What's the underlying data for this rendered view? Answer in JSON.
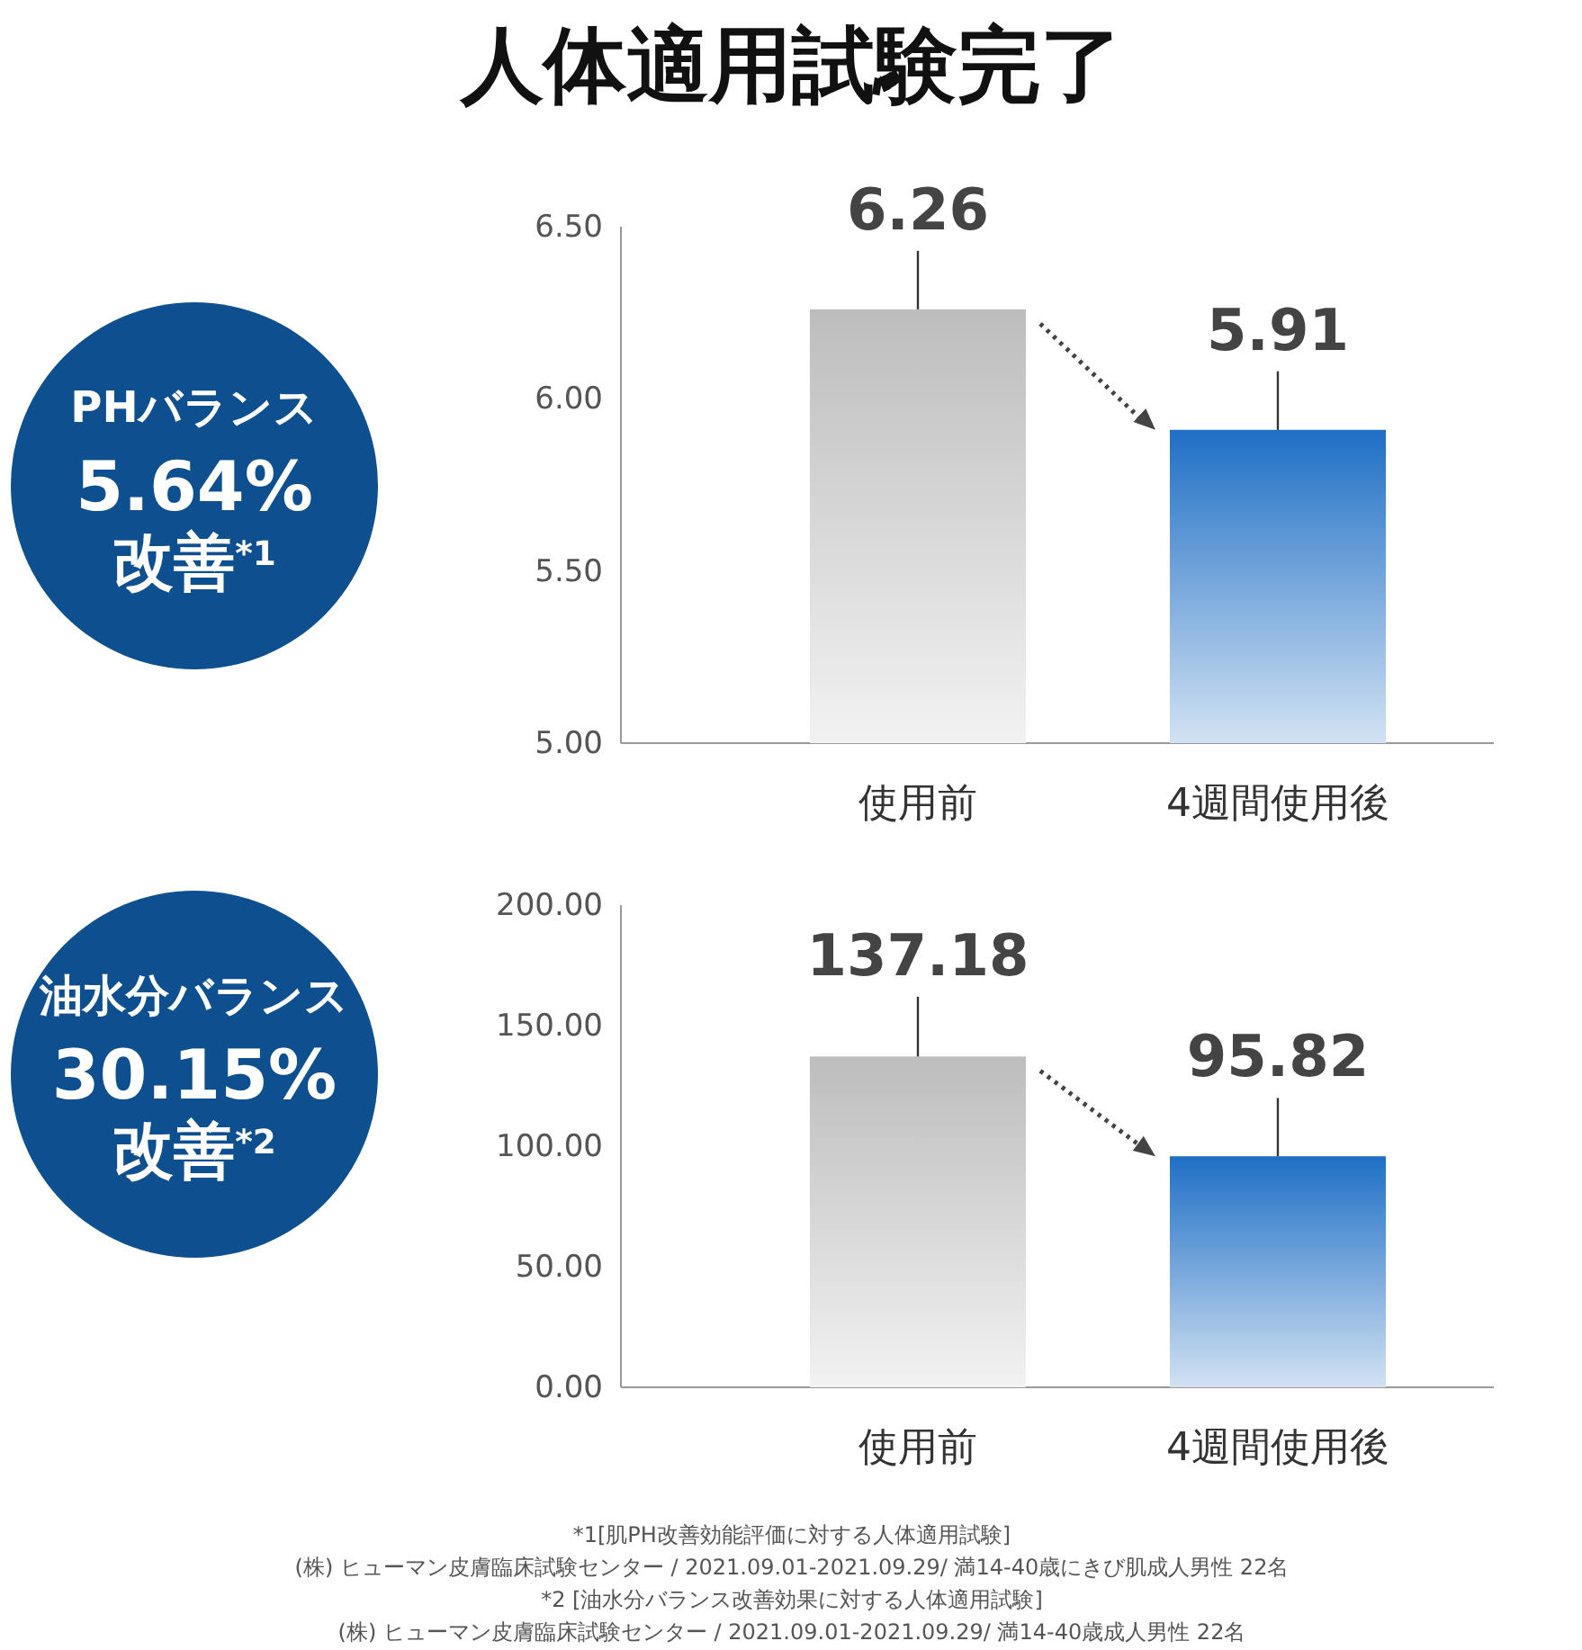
{
  "chart_data": [
    {
      "type": "bar",
      "title": "人体適用試験完了",
      "categories": [
        "使用前",
        "4週間使用後"
      ],
      "values": [
        6.26,
        5.91
      ],
      "colors": [
        "#bdbdbd",
        "#1f6fc5"
      ],
      "errors": [
        [
          6.26,
          6.43
        ],
        [
          5.91,
          6.08
        ]
      ],
      "data_labels": true,
      "ylim": [
        5,
        6.5
      ],
      "yticks": [
        {
          "value": 5,
          "label": "5.00"
        },
        {
          "value": 5.5,
          "label": "5.50"
        },
        {
          "value": 6,
          "label": "6.00"
        },
        {
          "value": 6.5,
          "label": "6.50"
        }
      ],
      "annotations": [
        "PHバランス",
        "5.64%",
        "改善$^{*1}$"
      ]
    },
    {
      "type": "bar",
      "categories": [
        "使用前",
        "4週間使用後"
      ],
      "values": [
        137.18,
        95.82
      ],
      "colors": [
        "#bdbdbd",
        "#1f6fc5"
      ],
      "errors": [
        [
          137.18,
          162
        ],
        [
          95.82,
          120
        ]
      ],
      "data_labels": true,
      "ylim": [
        0,
        200
      ],
      "yticks": [
        {
          "value": 0,
          "label": "0.00"
        },
        {
          "value": 50,
          "label": "50.00"
        },
        {
          "value": 100,
          "label": "100.00"
        },
        {
          "value": 150,
          "label": "150.00"
        },
        {
          "value": 200,
          "label": "200.00"
        }
      ],
      "annotations": [
        "油水分バランス",
        "30.15%",
        "改善$^{*2}$",
        "*1[肌PH改善効能評価に対する人体適用試験]",
        "(株) ヒューマン皮膚臨床試験センター / 2021.09.01-2021.09.29/ 満14-40歳にきび肌成人男性 22名",
        "*2 [油水分バランス改善効果に対する人体適用試験]",
        "(株) ヒューマン皮膚臨床試験センター / 2021.09.01-2021.09.29/ 満14-40歳成人男性 22名"
      ]
    }
  ]
}
